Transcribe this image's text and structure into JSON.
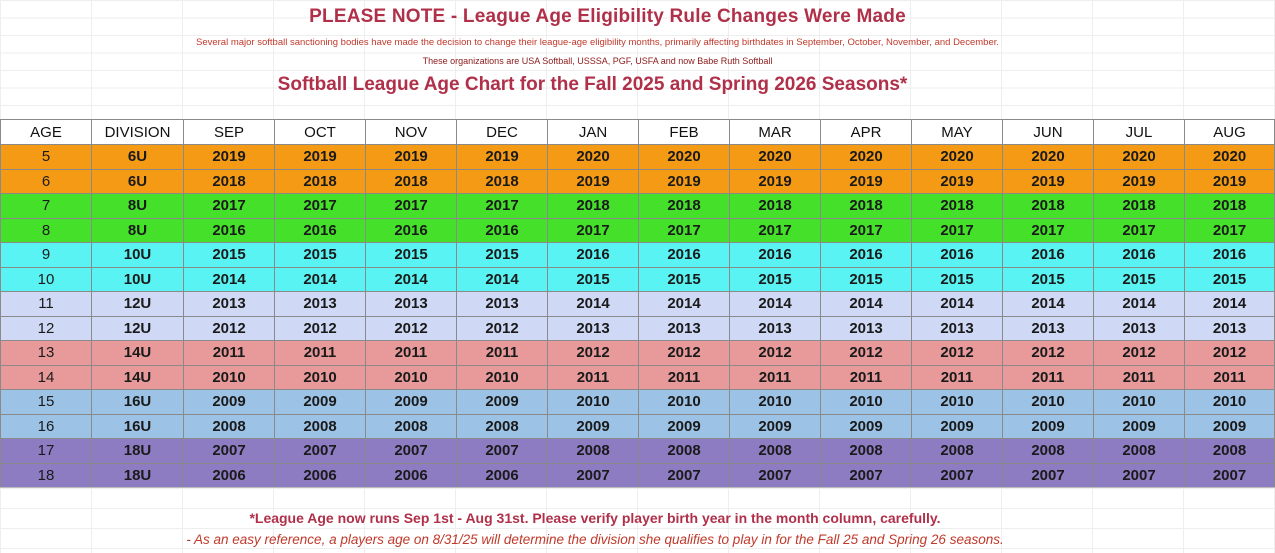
{
  "notice": {
    "title": "PLEASE NOTE - League Age Eligibility Rule Changes Were Made",
    "line1": "Several major softball sanctioning bodies have made the decision to change their league-age eligibility months, primarily affecting birthdates in September, October, November, and December.",
    "line2": "These organizations are USA Softball, USSSA, PGF, USFA and now Babe Ruth Softball"
  },
  "chart_title": "Softball League Age Chart for the Fall 2025 and Spring 2026 Seasons*",
  "columns": [
    "AGE",
    "DIVISION",
    "SEP",
    "OCT",
    "NOV",
    "DEC",
    "JAN",
    "FEB",
    "MAR",
    "APR",
    "MAY",
    "JUN",
    "JUL",
    "AUG"
  ],
  "rows": [
    {
      "age": "5",
      "division": "6U",
      "color": "#f59a14",
      "years": [
        "2019",
        "2019",
        "2019",
        "2019",
        "2020",
        "2020",
        "2020",
        "2020",
        "2020",
        "2020",
        "2020",
        "2020"
      ]
    },
    {
      "age": "6",
      "division": "6U",
      "color": "#f59a14",
      "years": [
        "2018",
        "2018",
        "2018",
        "2018",
        "2019",
        "2019",
        "2019",
        "2019",
        "2019",
        "2019",
        "2019",
        "2019"
      ]
    },
    {
      "age": "7",
      "division": "8U",
      "color": "#44e02a",
      "years": [
        "2017",
        "2017",
        "2017",
        "2017",
        "2018",
        "2018",
        "2018",
        "2018",
        "2018",
        "2018",
        "2018",
        "2018"
      ]
    },
    {
      "age": "8",
      "division": "8U",
      "color": "#44e02a",
      "years": [
        "2016",
        "2016",
        "2016",
        "2016",
        "2017",
        "2017",
        "2017",
        "2017",
        "2017",
        "2017",
        "2017",
        "2017"
      ]
    },
    {
      "age": "9",
      "division": "10U",
      "color": "#5af3f3",
      "years": [
        "2015",
        "2015",
        "2015",
        "2015",
        "2016",
        "2016",
        "2016",
        "2016",
        "2016",
        "2016",
        "2016",
        "2016"
      ]
    },
    {
      "age": "10",
      "division": "10U",
      "color": "#5af3f3",
      "years": [
        "2014",
        "2014",
        "2014",
        "2014",
        "2015",
        "2015",
        "2015",
        "2015",
        "2015",
        "2015",
        "2015",
        "2015"
      ]
    },
    {
      "age": "11",
      "division": "12U",
      "color": "#cfd9f5",
      "years": [
        "2013",
        "2013",
        "2013",
        "2013",
        "2014",
        "2014",
        "2014",
        "2014",
        "2014",
        "2014",
        "2014",
        "2014"
      ]
    },
    {
      "age": "12",
      "division": "12U",
      "color": "#cfd9f5",
      "years": [
        "2012",
        "2012",
        "2012",
        "2012",
        "2013",
        "2013",
        "2013",
        "2013",
        "2013",
        "2013",
        "2013",
        "2013"
      ]
    },
    {
      "age": "13",
      "division": "14U",
      "color": "#e89a9a",
      "years": [
        "2011",
        "2011",
        "2011",
        "2011",
        "2012",
        "2012",
        "2012",
        "2012",
        "2012",
        "2012",
        "2012",
        "2012"
      ]
    },
    {
      "age": "14",
      "division": "14U",
      "color": "#e89a9a",
      "years": [
        "2010",
        "2010",
        "2010",
        "2010",
        "2011",
        "2011",
        "2011",
        "2011",
        "2011",
        "2011",
        "2011",
        "2011"
      ]
    },
    {
      "age": "15",
      "division": "16U",
      "color": "#9cc3e6",
      "years": [
        "2009",
        "2009",
        "2009",
        "2009",
        "2010",
        "2010",
        "2010",
        "2010",
        "2010",
        "2010",
        "2010",
        "2010"
      ]
    },
    {
      "age": "16",
      "division": "16U",
      "color": "#9cc3e6",
      "years": [
        "2008",
        "2008",
        "2008",
        "2008",
        "2009",
        "2009",
        "2009",
        "2009",
        "2009",
        "2009",
        "2009",
        "2009"
      ]
    },
    {
      "age": "17",
      "division": "18U",
      "color": "#8e7cc3",
      "years": [
        "2007",
        "2007",
        "2007",
        "2007",
        "2008",
        "2008",
        "2008",
        "2008",
        "2008",
        "2008",
        "2008",
        "2008"
      ]
    },
    {
      "age": "18",
      "division": "18U",
      "color": "#8e7cc3",
      "years": [
        "2006",
        "2006",
        "2006",
        "2006",
        "2007",
        "2007",
        "2007",
        "2007",
        "2007",
        "2007",
        "2007",
        "2007"
      ]
    }
  ],
  "footer": {
    "line1": "*League Age now runs Sep 1st - Aug 31st. Please verify player birth year in the month column, carefully.",
    "line2": "- As an easy reference, a players age on 8/31/25 will determine the division she qualifies to play in for the Fall 25 and Spring 26 seasons."
  }
}
